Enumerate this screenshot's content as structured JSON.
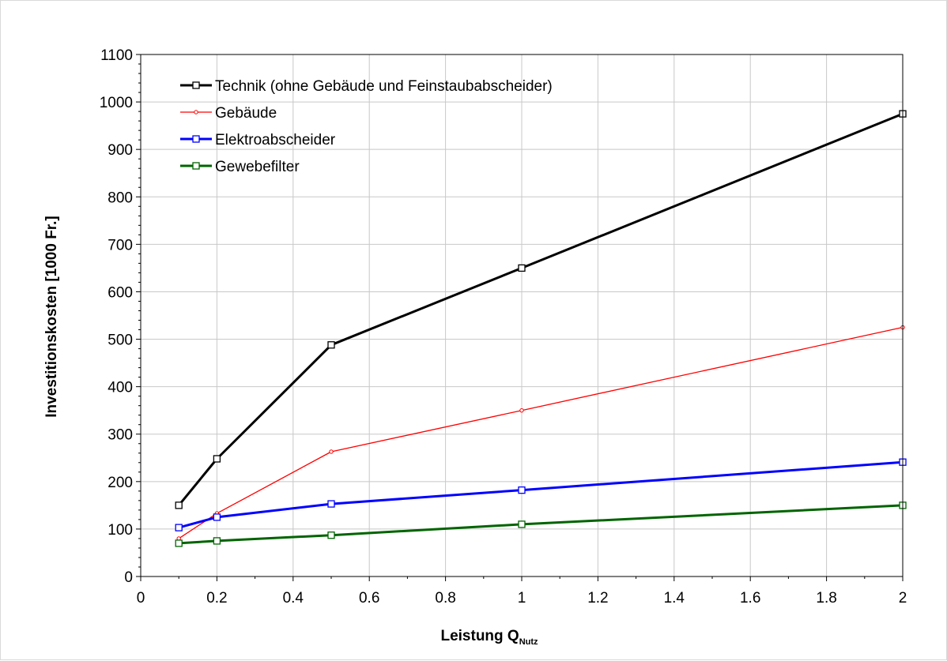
{
  "chart_data": {
    "type": "line",
    "xlabel": "Leistung Q",
    "xlabel_sub": "Nutz",
    "ylabel": "Investitionskosten [1000 Fr.]",
    "xlim": [
      0,
      2
    ],
    "ylim": [
      0,
      1100
    ],
    "x_ticks": [
      "0",
      "0.2",
      "0.4",
      "0.6",
      "0.8",
      "1",
      "1.2",
      "1.4",
      "1.6",
      "1.8",
      "2"
    ],
    "y_ticks": [
      "0",
      "100",
      "200",
      "300",
      "400",
      "500",
      "600",
      "700",
      "800",
      "900",
      "1000",
      "1100"
    ],
    "grid": true,
    "legend_position": "top-left",
    "series": [
      {
        "name": "Technik (ohne Gebäude und Feinstaubabscheider)",
        "color": "#000000",
        "marker": "square",
        "x": [
          0.1,
          0.2,
          0.5,
          1,
          2
        ],
        "y": [
          150,
          248,
          488,
          650,
          975
        ]
      },
      {
        "name": "Gebäude",
        "color": "#ff0000",
        "marker": "small-circle",
        "x": [
          0.1,
          0.2,
          0.5,
          1,
          2
        ],
        "y": [
          80,
          133,
          263,
          350,
          525
        ]
      },
      {
        "name": "Elektroabscheider",
        "color": "#0000ff",
        "marker": "square",
        "x": [
          0.1,
          0.2,
          0.5,
          1,
          2
        ],
        "y": [
          103,
          125,
          153,
          182,
          241
        ]
      },
      {
        "name": "Gewebefilter",
        "color": "#006400",
        "marker": "square",
        "x": [
          0.1,
          0.2,
          0.5,
          1,
          2
        ],
        "y": [
          70,
          75,
          87,
          110,
          150
        ]
      }
    ]
  }
}
